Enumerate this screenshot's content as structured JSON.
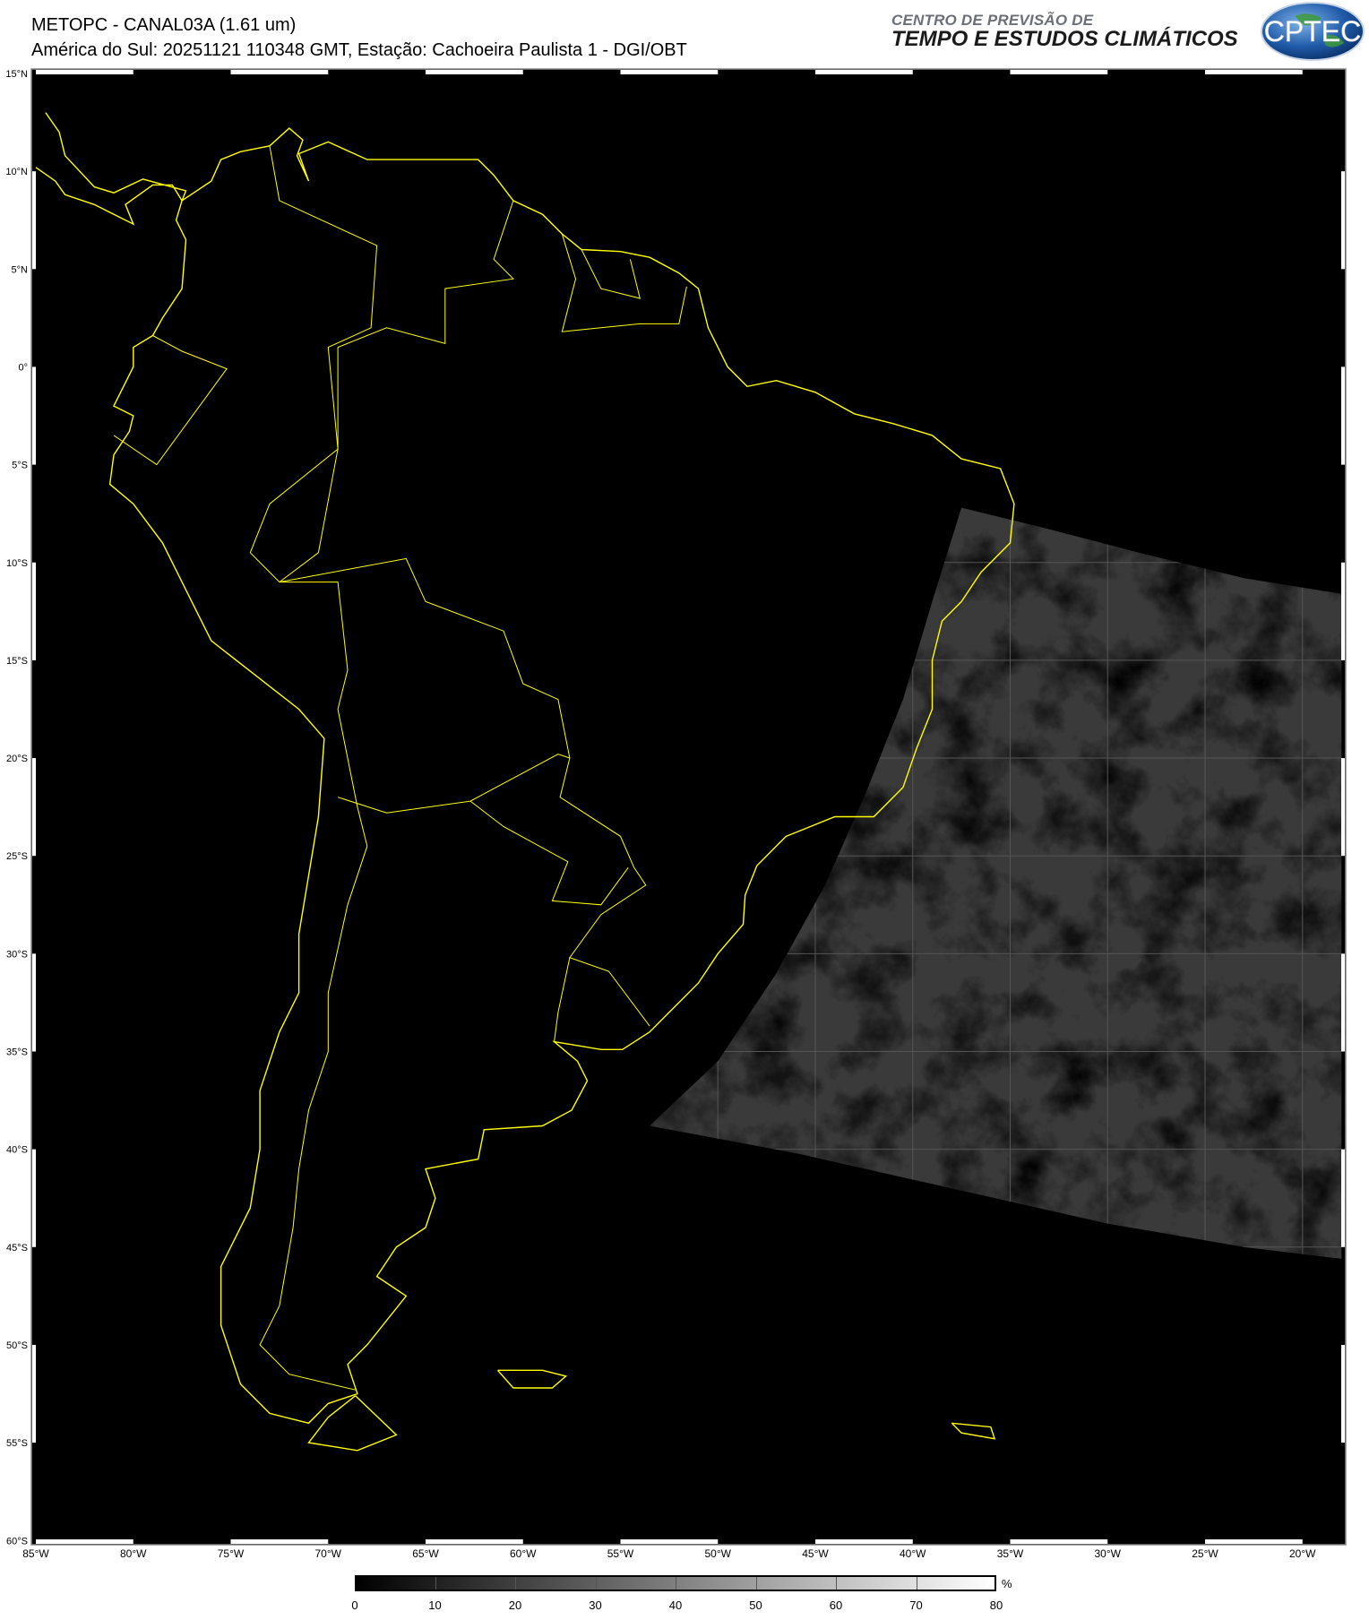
{
  "header": {
    "title": "METOPC - CANAL03A (1.61 um)",
    "subtitle": "América do Sul: 20251121 110348 GMT, Estação: Cachoeira Paulista 1 - DGI/OBT",
    "brand_line1": "CENTRO DE PREVISÃO DE",
    "brand_line2": "TEMPO E ESTUDOS CLIMÁTICOS",
    "logo_text": "CPTEC"
  },
  "map": {
    "projection": "equirectangular",
    "lon_range": [
      -85,
      -18
    ],
    "lat_range": [
      -60,
      15
    ],
    "coastline_color": "#ffff00",
    "background_color": "#000000",
    "lat_labels": [
      "15°N",
      "10°N",
      "5°N",
      "0°",
      "5°S",
      "10°S",
      "15°S",
      "20°S",
      "25°S",
      "30°S",
      "35°S",
      "40°S",
      "45°S",
      "50°S",
      "55°S",
      "60°S"
    ],
    "lon_labels": [
      "85°W",
      "80°W",
      "75°W",
      "70°W",
      "65°W",
      "60°W",
      "55°W",
      "50°W",
      "45°W",
      "40°W",
      "35°W",
      "30°W",
      "25°W",
      "20°W"
    ]
  },
  "colorbar": {
    "unit": "%",
    "range": [
      0,
      80
    ],
    "ticks": [
      "0",
      "10",
      "20",
      "30",
      "40",
      "50",
      "60",
      "70",
      "80"
    ],
    "colors": [
      "#000000",
      "#ffffff"
    ]
  }
}
